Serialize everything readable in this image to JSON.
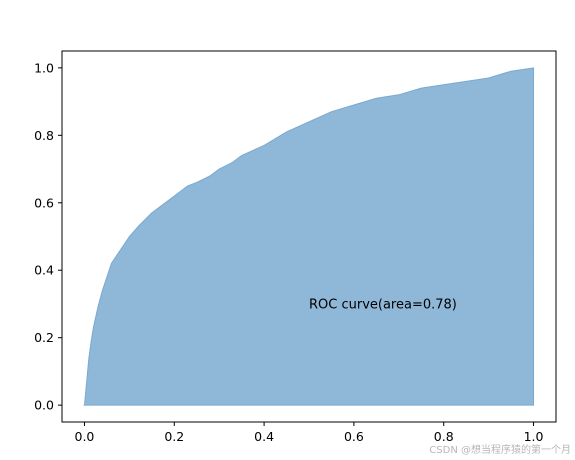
{
  "chart_data": {
    "type": "area",
    "title": "",
    "xlabel": "",
    "ylabel": "",
    "xlim": [
      -0.05,
      1.05
    ],
    "ylim": [
      -0.05,
      1.05
    ],
    "grid": false,
    "fill_color": "#8fb8d8",
    "edge_color": "#7aa9cf",
    "x": [
      0,
      0.005,
      0.01,
      0.015,
      0.02,
      0.03,
      0.04,
      0.05,
      0.06,
      0.07,
      0.08,
      0.1,
      0.12,
      0.15,
      0.18,
      0.2,
      0.23,
      0.25,
      0.28,
      0.3,
      0.33,
      0.35,
      0.4,
      0.45,
      0.5,
      0.55,
      0.6,
      0.65,
      0.7,
      0.75,
      0.8,
      0.85,
      0.9,
      0.95,
      1.0
    ],
    "values": [
      0,
      0.07,
      0.14,
      0.19,
      0.23,
      0.29,
      0.34,
      0.38,
      0.42,
      0.44,
      0.46,
      0.5,
      0.53,
      0.57,
      0.6,
      0.62,
      0.65,
      0.66,
      0.68,
      0.7,
      0.72,
      0.74,
      0.77,
      0.81,
      0.84,
      0.87,
      0.89,
      0.91,
      0.92,
      0.94,
      0.95,
      0.96,
      0.97,
      0.99,
      1.0
    ],
    "xticks": [
      "0.0",
      "0.2",
      "0.4",
      "0.6",
      "0.8",
      "1.0"
    ],
    "yticks": [
      "0.0",
      "0.2",
      "0.4",
      "0.6",
      "0.8",
      "1.0"
    ],
    "xtick_values": [
      0,
      0.2,
      0.4,
      0.6,
      0.8,
      1.0
    ],
    "ytick_values": [
      0,
      0.2,
      0.4,
      0.6,
      0.8,
      1.0
    ],
    "annotation": {
      "text": "ROC curve(area=0.78)",
      "x": 0.5,
      "y": 0.3
    }
  },
  "watermark": "CSDN @想当程序猿的第一个月"
}
